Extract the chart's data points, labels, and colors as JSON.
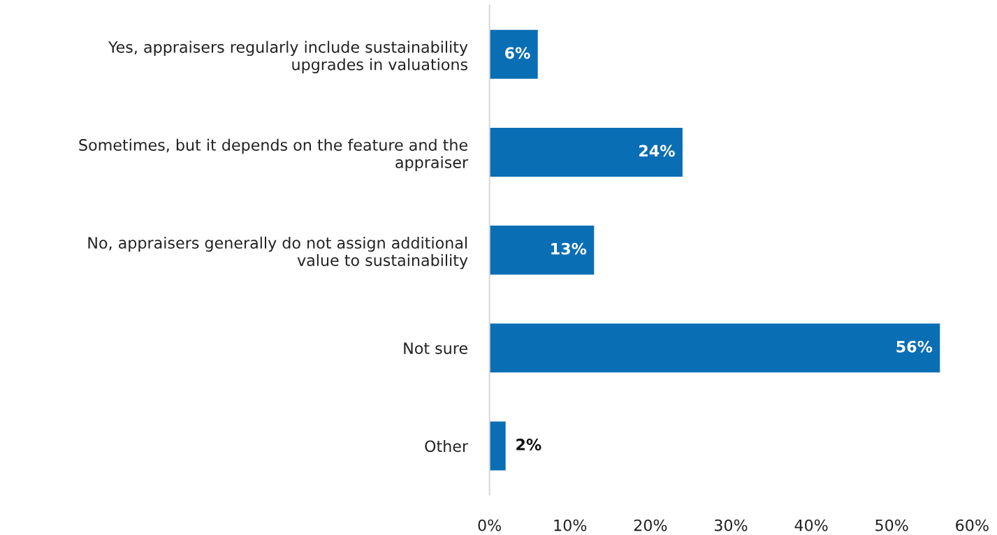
{
  "chart_data": {
    "type": "bar",
    "orientation": "horizontal",
    "categories": [
      "Yes, appraisers regularly include sustainability upgrades in valuations",
      "Sometimes, but it depends on the feature and the appraiser",
      "No, appraisers generally do not assign additional value to sustainability",
      "Not sure",
      "Other"
    ],
    "values": [
      6,
      24,
      13,
      56,
      2
    ],
    "value_labels": [
      "6%",
      "24%",
      "13%",
      "56%",
      "2%"
    ],
    "color": "#0a6eb4",
    "xlim": [
      0,
      60
    ],
    "xticks": [
      {
        "value": 0,
        "label": "0%"
      },
      {
        "value": 10,
        "label": "10%"
      },
      {
        "value": 20,
        "label": "20%"
      },
      {
        "value": 30,
        "label": "30%"
      },
      {
        "value": 40,
        "label": "40%"
      },
      {
        "value": 50,
        "label": "50%"
      },
      {
        "value": 60,
        "label": "60%"
      }
    ],
    "grid": false,
    "legend": false
  }
}
